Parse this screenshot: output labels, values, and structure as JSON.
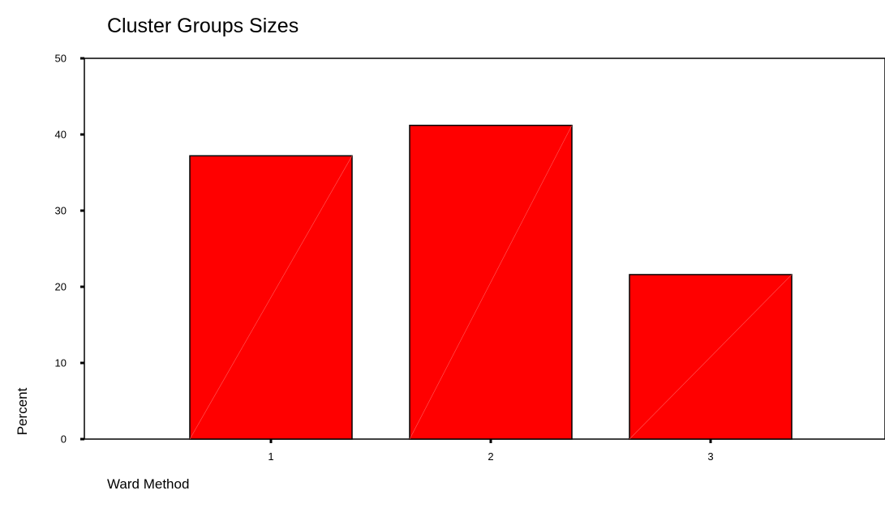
{
  "chart_data": {
    "type": "bar",
    "title": "Cluster Groups Sizes",
    "xlabel": "Ward Method",
    "ylabel": "Percent",
    "categories": [
      "1",
      "2",
      "3"
    ],
    "values": [
      37.2,
      41.2,
      21.6
    ],
    "ylim": [
      0,
      50
    ],
    "yticks": [
      "0",
      "10",
      "20",
      "30",
      "40",
      "50"
    ],
    "grid": false,
    "legend": "none",
    "bar_color": "#ff0000",
    "bar_edge_color": "#000000"
  }
}
